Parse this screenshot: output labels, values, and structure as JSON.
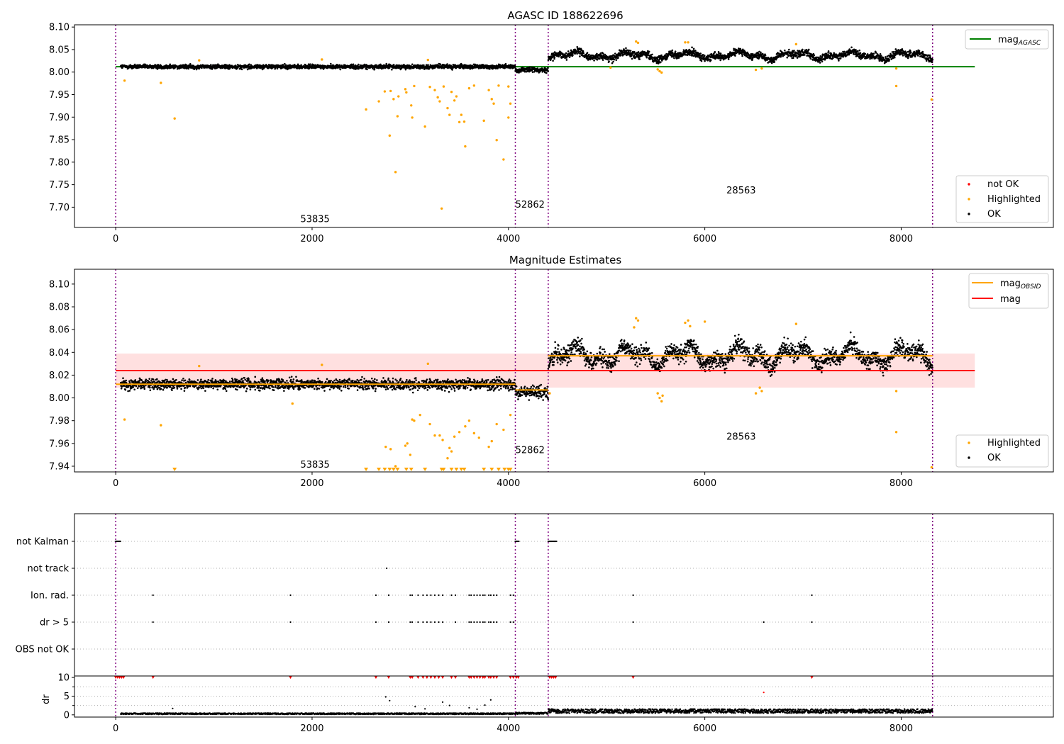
{
  "chart_data": [
    {
      "type": "scatter",
      "title": "AGASC ID 188622696",
      "xlim": [
        -420,
        9550
      ],
      "ylim": [
        7.655,
        8.105
      ],
      "x_ticks": [
        0,
        2000,
        4000,
        6000,
        8000
      ],
      "y_ticks": [
        7.7,
        7.75,
        7.8,
        7.85,
        7.9,
        7.95,
        8.0,
        8.05,
        8.1
      ],
      "obsid_boundaries": [
        0,
        4070,
        4405,
        8320
      ],
      "obsid_labels": [
        {
          "text": "53835",
          "x": 2030,
          "y": 7.675
        },
        {
          "text": "52862",
          "x": 4220,
          "y": 7.707
        },
        {
          "text": "28563",
          "x": 6370,
          "y": 7.738
        }
      ],
      "lines": [
        {
          "name": "mag_AGASC",
          "color": "#008000",
          "x": [
            0,
            8750
          ],
          "y": [
            8.012,
            8.012
          ]
        }
      ],
      "segments": [
        {
          "x": [
            50,
            4070
          ],
          "center": 8.012,
          "spread": 0.006
        },
        {
          "x": [
            4070,
            4405
          ],
          "center": 8.005,
          "spread": 0.007
        },
        {
          "x": [
            4405,
            8320
          ],
          "center": 8.037,
          "spread": 0.01
        }
      ],
      "highlighted": [
        [
          90,
          7.981
        ],
        [
          460,
          7.976
        ],
        [
          600,
          7.897
        ],
        [
          2550,
          7.917
        ],
        [
          2680,
          7.935
        ],
        [
          2740,
          7.957
        ],
        [
          2790,
          7.859
        ],
        [
          2800,
          7.958
        ],
        [
          2830,
          7.94
        ],
        [
          2850,
          7.778
        ],
        [
          2870,
          7.902
        ],
        [
          2880,
          7.946
        ],
        [
          2950,
          7.962
        ],
        [
          2960,
          7.955
        ],
        [
          3010,
          7.926
        ],
        [
          3020,
          7.899
        ],
        [
          3040,
          7.969
        ],
        [
          3150,
          7.879
        ],
        [
          3200,
          7.967
        ],
        [
          3250,
          7.96
        ],
        [
          3280,
          7.944
        ],
        [
          3300,
          7.935
        ],
        [
          3320,
          7.697
        ],
        [
          3340,
          7.968
        ],
        [
          3380,
          7.92
        ],
        [
          3400,
          7.905
        ],
        [
          3420,
          7.956
        ],
        [
          3450,
          7.937
        ],
        [
          3470,
          7.946
        ],
        [
          3500,
          7.889
        ],
        [
          3520,
          7.905
        ],
        [
          3550,
          7.89
        ],
        [
          3560,
          7.835
        ],
        [
          3600,
          7.964
        ],
        [
          3650,
          7.97
        ],
        [
          3750,
          7.892
        ],
        [
          3800,
          7.96
        ],
        [
          3830,
          7.94
        ],
        [
          3850,
          7.93
        ],
        [
          3880,
          7.849
        ],
        [
          3900,
          7.97
        ],
        [
          3950,
          7.806
        ],
        [
          4000,
          7.899
        ],
        [
          4020,
          7.93
        ],
        [
          4000,
          7.968
        ],
        [
          7950,
          7.969
        ],
        [
          8310,
          7.939
        ],
        [
          2100,
          8.028
        ],
        [
          850,
          8.026
        ],
        [
          3180,
          8.027
        ],
        [
          5300,
          8.068
        ],
        [
          5320,
          8.065
        ],
        [
          5540,
          8.002
        ],
        [
          5560,
          7.999
        ],
        [
          5520,
          8.006
        ],
        [
          5800,
          8.066
        ],
        [
          5830,
          8.066
        ],
        [
          6520,
          8.005
        ],
        [
          6580,
          8.008
        ],
        [
          6930,
          8.062
        ],
        [
          7950,
          8.008
        ],
        [
          5040,
          8.01
        ]
      ],
      "legend": [
        {
          "label": "not OK",
          "color": "#ff0000"
        },
        {
          "label": "Highlighted",
          "color": "#ffa500"
        },
        {
          "label": "OK",
          "color": "#000000"
        }
      ],
      "legend_lines": [
        {
          "label": "mag",
          "sub": "AGASC",
          "color": "#008000"
        }
      ]
    },
    {
      "type": "scatter",
      "title": "Magnitude Estimates",
      "xlim": [
        -420,
        9550
      ],
      "ylim": [
        7.935,
        8.113
      ],
      "x_ticks": [
        0,
        2000,
        4000,
        6000,
        8000
      ],
      "y_ticks": [
        7.94,
        7.96,
        7.98,
        8.0,
        8.02,
        8.04,
        8.06,
        8.08,
        8.1
      ],
      "obsid_boundaries": [
        0,
        4070,
        4405,
        8320
      ],
      "obsid_labels": [
        {
          "text": "53835",
          "x": 2030,
          "y": 7.942
        },
        {
          "text": "52862",
          "x": 4220,
          "y": 7.9545
        },
        {
          "text": "28563",
          "x": 6370,
          "y": 7.9665
        }
      ],
      "band": {
        "x": [
          0,
          8750
        ],
        "y": [
          8.009,
          8.039
        ],
        "color": "#ffcccc"
      },
      "lines": [
        {
          "name": "mag",
          "color": "#ff0000",
          "x": [
            0,
            8750
          ],
          "y": [
            8.024,
            8.024
          ]
        },
        {
          "name": "mag_OBSID",
          "color": "#ffa500",
          "x": [
            0,
            4070
          ],
          "y": [
            8.012,
            8.012
          ]
        },
        {
          "name": "mag_OBSID",
          "color": "#ffa500",
          "x": [
            4070,
            4405
          ],
          "y": [
            8.007,
            8.007
          ]
        },
        {
          "name": "mag_OBSID",
          "color": "#ffa500",
          "x": [
            4405,
            8320
          ],
          "y": [
            8.037,
            8.037
          ]
        }
      ],
      "segments": [
        {
          "x": [
            50,
            4070
          ],
          "center": 8.012,
          "spread": 0.006
        },
        {
          "x": [
            4070,
            4405
          ],
          "center": 8.005,
          "spread": 0.007
        },
        {
          "x": [
            4405,
            8320
          ],
          "center": 8.037,
          "spread": 0.01
        }
      ],
      "highlighted": [
        [
          90,
          7.981
        ],
        [
          460,
          7.976
        ],
        [
          2100,
          8.029
        ],
        [
          850,
          8.028
        ],
        [
          1800,
          7.995
        ],
        [
          3180,
          8.03
        ],
        [
          3020,
          7.981
        ],
        [
          3040,
          7.98
        ],
        [
          3100,
          7.985
        ],
        [
          3200,
          7.977
        ],
        [
          3250,
          7.967
        ],
        [
          3300,
          7.967
        ],
        [
          3330,
          7.963
        ],
        [
          3400,
          7.956
        ],
        [
          3450,
          7.966
        ],
        [
          3500,
          7.97
        ],
        [
          3560,
          7.975
        ],
        [
          3600,
          7.98
        ],
        [
          3650,
          7.969
        ],
        [
          3700,
          7.965
        ],
        [
          3800,
          7.957
        ],
        [
          3830,
          7.962
        ],
        [
          3880,
          7.977
        ],
        [
          3950,
          7.972
        ],
        [
          2750,
          7.957
        ],
        [
          2800,
          7.955
        ],
        [
          2850,
          7.94
        ],
        [
          2950,
          7.958
        ],
        [
          2970,
          7.96
        ],
        [
          3000,
          7.95
        ],
        [
          3380,
          7.947
        ],
        [
          3420,
          7.953
        ],
        [
          4020,
          7.985
        ],
        [
          5300,
          8.07
        ],
        [
          5320,
          8.068
        ],
        [
          5280,
          8.062
        ],
        [
          5540,
          8.0
        ],
        [
          5560,
          7.997
        ],
        [
          5520,
          8.004
        ],
        [
          5570,
          8.002
        ],
        [
          5800,
          8.066
        ],
        [
          5830,
          8.068
        ],
        [
          5850,
          8.063
        ],
        [
          6000,
          8.067
        ],
        [
          6520,
          8.004
        ],
        [
          6580,
          8.006
        ],
        [
          6560,
          8.009
        ],
        [
          6930,
          8.065
        ],
        [
          7950,
          8.006
        ],
        [
          7950,
          7.97
        ],
        [
          8310,
          7.939
        ],
        [
          4420,
          8.004
        ]
      ],
      "highlighted_clipped_x": [
        600,
        2550,
        2680,
        2740,
        2790,
        2830,
        2870,
        2960,
        3010,
        3150,
        3320,
        3340,
        3420,
        3470,
        3520,
        3550,
        3750,
        3830,
        3900,
        3960,
        4000,
        4020
      ],
      "legend": [
        {
          "label": "Highlighted",
          "color": "#ffa500"
        },
        {
          "label": "OK",
          "color": "#000000"
        }
      ],
      "legend_lines": [
        {
          "label": "mag",
          "sub": "OBSID",
          "color": "#ffa500"
        },
        {
          "label": "mag",
          "sub": "",
          "color": "#ff0000"
        }
      ]
    },
    {
      "type": "scatter",
      "title": "",
      "xlim": [
        -420,
        9550
      ],
      "x_ticks": [
        0,
        2000,
        4000,
        6000,
        8000
      ],
      "categories": [
        "not Kalman",
        "not track",
        "Ion. rad.",
        "dr > 5",
        "OBS not OK"
      ],
      "obsid_boundaries": [
        0,
        4070,
        4405,
        8320
      ],
      "flags": {
        "not Kalman": [
          [
            0,
            50
          ],
          [
            4070,
            4110
          ],
          [
            4405,
            4490
          ]
        ],
        "not track": [
          2760
        ],
        "Ion. rad.": [
          380,
          1780,
          2650,
          2780,
          3000,
          3020,
          3080,
          3130,
          3170,
          3210,
          3250,
          3290,
          3330,
          3420,
          3460,
          3600,
          3620,
          3650,
          3680,
          3710,
          3740,
          3760,
          3800,
          3820,
          3850,
          3880,
          4020,
          4050,
          5270,
          7090
        ],
        "dr > 5": [
          380,
          1780,
          2650,
          2780,
          3000,
          3020,
          3080,
          3130,
          3170,
          3210,
          3250,
          3290,
          3330,
          3460,
          3600,
          3620,
          3650,
          3680,
          3710,
          3740,
          3760,
          3800,
          3820,
          3850,
          3880,
          4020,
          4050,
          5270,
          6600,
          7090
        ]
      }
    },
    {
      "type": "scatter",
      "ylabel": "dr",
      "xlim": [
        -420,
        9550
      ],
      "ylim": [
        -0.6,
        10.4
      ],
      "x_ticks": [
        0,
        2000,
        4000,
        6000,
        8000
      ],
      "y_ticks": [
        0,
        5,
        10
      ],
      "obsid_boundaries": [
        0,
        4070,
        4405,
        8320
      ],
      "clipped_x": [
        0,
        20,
        40,
        60,
        80,
        380,
        1780,
        2650,
        2780,
        3000,
        3020,
        3080,
        3130,
        3170,
        3210,
        3250,
        3290,
        3330,
        3420,
        3460,
        3600,
        3620,
        3650,
        3680,
        3710,
        3740,
        3760,
        3800,
        3820,
        3850,
        3880,
        4020,
        4050,
        4080,
        4100,
        4420,
        4440,
        4460,
        4480,
        5270,
        7090
      ],
      "outliers": [
        [
          2750,
          4.8
        ],
        [
          2790,
          3.8
        ],
        [
          3330,
          3.4
        ],
        [
          3400,
          2.5
        ],
        [
          3760,
          2.6
        ],
        [
          3820,
          4.0
        ],
        [
          580,
          1.7
        ],
        [
          6600,
          6.0
        ],
        [
          3050,
          2.2
        ],
        [
          3600,
          1.9
        ],
        [
          3680,
          1.5
        ],
        [
          3150,
          1.6
        ]
      ],
      "segments": [
        {
          "x": [
            50,
            4070
          ],
          "base": 0.3
        },
        {
          "x": [
            4070,
            4405
          ],
          "base": 0.4
        },
        {
          "x": [
            4405,
            8320
          ],
          "base": 1.0
        }
      ]
    }
  ]
}
